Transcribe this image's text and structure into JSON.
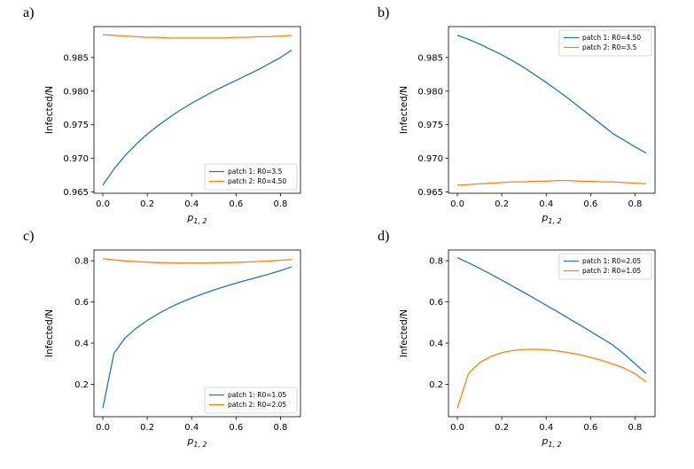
{
  "figure": {
    "background": "#ffffff"
  },
  "chart_data": [
    {
      "panel_label": "a)",
      "type": "line",
      "title": "",
      "ylabel": "Infected/N",
      "xlabel_base": "p",
      "xlabel_sub": "1, 2",
      "xlim": [
        -0.04,
        0.89
      ],
      "ylim": [
        0.9648,
        0.9896
      ],
      "xticks": [
        0.0,
        0.2,
        0.4,
        0.6,
        0.8
      ],
      "xtick_labels": [
        "0.0",
        "0.2",
        "0.4",
        "0.6",
        "0.8"
      ],
      "yticks": [
        0.965,
        0.97,
        0.975,
        0.98,
        0.985
      ],
      "ytick_labels": [
        "0.965",
        "0.970",
        "0.975",
        "0.980",
        "0.985"
      ],
      "grid": false,
      "legend_position": "lower-right",
      "x": [
        0.0,
        0.05,
        0.1,
        0.15,
        0.2,
        0.25,
        0.3,
        0.35,
        0.4,
        0.45,
        0.5,
        0.55,
        0.6,
        0.65,
        0.7,
        0.75,
        0.8,
        0.85
      ],
      "series": [
        {
          "name": "patch 1: R0=3.5",
          "color": "#1f77b4",
          "y": [
            0.966,
            0.9684,
            0.9704,
            0.9721,
            0.9736,
            0.9749,
            0.9761,
            0.9772,
            0.9782,
            0.9791,
            0.98,
            0.9808,
            0.9816,
            0.9824,
            0.9832,
            0.9841,
            0.985,
            0.9861
          ]
        },
        {
          "name": "patch 2: R0=4.50",
          "color": "#ff7f0e",
          "y": [
            0.9884,
            0.9883,
            0.9882,
            0.9881,
            0.988,
            0.988,
            0.9879,
            0.9879,
            0.9879,
            0.9879,
            0.9879,
            0.9879,
            0.988,
            0.988,
            0.9881,
            0.9881,
            0.9882,
            0.9883
          ]
        }
      ]
    },
    {
      "panel_label": "b)",
      "type": "line",
      "title": "",
      "ylabel": "Infected/N",
      "xlabel_base": "p",
      "xlabel_sub": "1, 2",
      "xlim": [
        -0.04,
        0.89
      ],
      "ylim": [
        0.9648,
        0.9896
      ],
      "xticks": [
        0.0,
        0.2,
        0.4,
        0.6,
        0.8
      ],
      "xtick_labels": [
        "0.0",
        "0.2",
        "0.4",
        "0.6",
        "0.8"
      ],
      "yticks": [
        0.965,
        0.97,
        0.975,
        0.98,
        0.985
      ],
      "ytick_labels": [
        "0.965",
        "0.970",
        "0.975",
        "0.980",
        "0.985"
      ],
      "grid": false,
      "legend_position": "upper-right",
      "x": [
        0.0,
        0.05,
        0.1,
        0.15,
        0.2,
        0.25,
        0.3,
        0.35,
        0.4,
        0.45,
        0.5,
        0.55,
        0.6,
        0.65,
        0.7,
        0.75,
        0.8,
        0.85
      ],
      "series": [
        {
          "name": "patch 1: R0=4.50",
          "color": "#1f77b4",
          "y": [
            0.9883,
            0.9877,
            0.987,
            0.9862,
            0.9854,
            0.9845,
            0.9835,
            0.9824,
            0.9813,
            0.9801,
            0.9789,
            0.9776,
            0.9763,
            0.975,
            0.9737,
            0.9727,
            0.9717,
            0.9708
          ]
        },
        {
          "name": "patch 2: R0=3.5",
          "color": "#ff7f0e",
          "y": [
            0.966,
            0.9661,
            0.9662,
            0.9663,
            0.9664,
            0.9665,
            0.9665,
            0.9666,
            0.9666,
            0.9667,
            0.9667,
            0.9666,
            0.9666,
            0.9665,
            0.9665,
            0.9664,
            0.9663,
            0.9662
          ]
        }
      ]
    },
    {
      "panel_label": "c)",
      "type": "line",
      "title": "",
      "ylabel": "Infected/N",
      "xlabel_base": "p",
      "xlabel_sub": "1, 2",
      "xlim": [
        -0.04,
        0.89
      ],
      "ylim": [
        0.043,
        0.852
      ],
      "xticks": [
        0.0,
        0.2,
        0.4,
        0.6,
        0.8
      ],
      "xtick_labels": [
        "0.0",
        "0.2",
        "0.4",
        "0.6",
        "0.8"
      ],
      "yticks": [
        0.2,
        0.4,
        0.6,
        0.8
      ],
      "ytick_labels": [
        "0.2",
        "0.4",
        "0.6",
        "0.8"
      ],
      "grid": false,
      "legend_position": "lower-right",
      "x": [
        0.0,
        0.05,
        0.1,
        0.15,
        0.2,
        0.25,
        0.3,
        0.35,
        0.4,
        0.45,
        0.5,
        0.55,
        0.6,
        0.65,
        0.7,
        0.75,
        0.8,
        0.85
      ],
      "series": [
        {
          "name": "patch 1: R0=1.05",
          "color": "#1f77b4",
          "y": [
            0.085,
            0.35,
            0.425,
            0.472,
            0.51,
            0.543,
            0.572,
            0.597,
            0.619,
            0.639,
            0.658,
            0.675,
            0.691,
            0.706,
            0.721,
            0.736,
            0.752,
            0.77
          ]
        },
        {
          "name": "patch 2: R0=2.05",
          "color": "#ff7f0e",
          "y": [
            0.81,
            0.804,
            0.799,
            0.796,
            0.793,
            0.791,
            0.79,
            0.789,
            0.789,
            0.789,
            0.79,
            0.791,
            0.792,
            0.794,
            0.796,
            0.799,
            0.802,
            0.806
          ]
        }
      ]
    },
    {
      "panel_label": "d)",
      "type": "line",
      "title": "",
      "ylabel": "Infected/N",
      "xlabel_base": "p",
      "xlabel_sub": "1, 2",
      "xlim": [
        -0.04,
        0.89
      ],
      "ylim": [
        0.043,
        0.852
      ],
      "xticks": [
        0.0,
        0.2,
        0.4,
        0.6,
        0.8
      ],
      "xtick_labels": [
        "0.0",
        "0.2",
        "0.4",
        "0.6",
        "0.8"
      ],
      "yticks": [
        0.2,
        0.4,
        0.6,
        0.8
      ],
      "ytick_labels": [
        "0.2",
        "0.4",
        "0.6",
        "0.8"
      ],
      "grid": false,
      "legend_position": "upper-right",
      "x": [
        0.0,
        0.05,
        0.1,
        0.15,
        0.2,
        0.25,
        0.3,
        0.35,
        0.4,
        0.45,
        0.5,
        0.55,
        0.6,
        0.65,
        0.7,
        0.75,
        0.8,
        0.85
      ],
      "series": [
        {
          "name": "patch 1: R0=2.05",
          "color": "#1f77b4",
          "y": [
            0.815,
            0.79,
            0.763,
            0.735,
            0.706,
            0.676,
            0.646,
            0.615,
            0.584,
            0.553,
            0.521,
            0.489,
            0.457,
            0.424,
            0.391,
            0.348,
            0.3,
            0.252
          ]
        },
        {
          "name": "patch 2: R0=1.05",
          "color": "#ff7f0e",
          "y": [
            0.085,
            0.252,
            0.305,
            0.335,
            0.354,
            0.364,
            0.369,
            0.37,
            0.368,
            0.362,
            0.354,
            0.344,
            0.331,
            0.316,
            0.299,
            0.279,
            0.252,
            0.212
          ]
        }
      ]
    }
  ]
}
